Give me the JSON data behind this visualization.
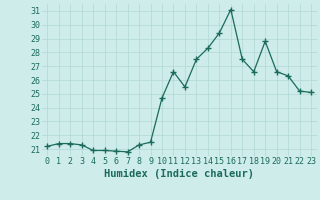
{
  "x": [
    0,
    1,
    2,
    3,
    4,
    5,
    6,
    7,
    8,
    9,
    10,
    11,
    12,
    13,
    14,
    15,
    16,
    17,
    18,
    19,
    20,
    21,
    22,
    23
  ],
  "y": [
    21.2,
    21.4,
    21.4,
    21.3,
    20.9,
    20.9,
    20.85,
    20.8,
    21.3,
    21.5,
    24.7,
    26.6,
    25.5,
    27.5,
    28.3,
    29.4,
    31.1,
    27.5,
    26.6,
    28.8,
    26.6,
    26.3,
    25.2,
    25.1
  ],
  "line_color": "#1a6b5a",
  "marker": "+",
  "markersize": 4,
  "linewidth": 0.9,
  "background_color": "#ceecea",
  "grid_color": "#b0d8d4",
  "xlabel": "Humidex (Indice chaleur)",
  "xlim": [
    -0.5,
    23.5
  ],
  "ylim": [
    20.5,
    31.5
  ],
  "yticks": [
    21,
    22,
    23,
    24,
    25,
    26,
    27,
    28,
    29,
    30,
    31
  ],
  "xticks": [
    0,
    1,
    2,
    3,
    4,
    5,
    6,
    7,
    8,
    9,
    10,
    11,
    12,
    13,
    14,
    15,
    16,
    17,
    18,
    19,
    20,
    21,
    22,
    23
  ],
  "xlabel_fontsize": 7.5,
  "tick_fontsize": 6,
  "label_color": "#1a6b5a"
}
